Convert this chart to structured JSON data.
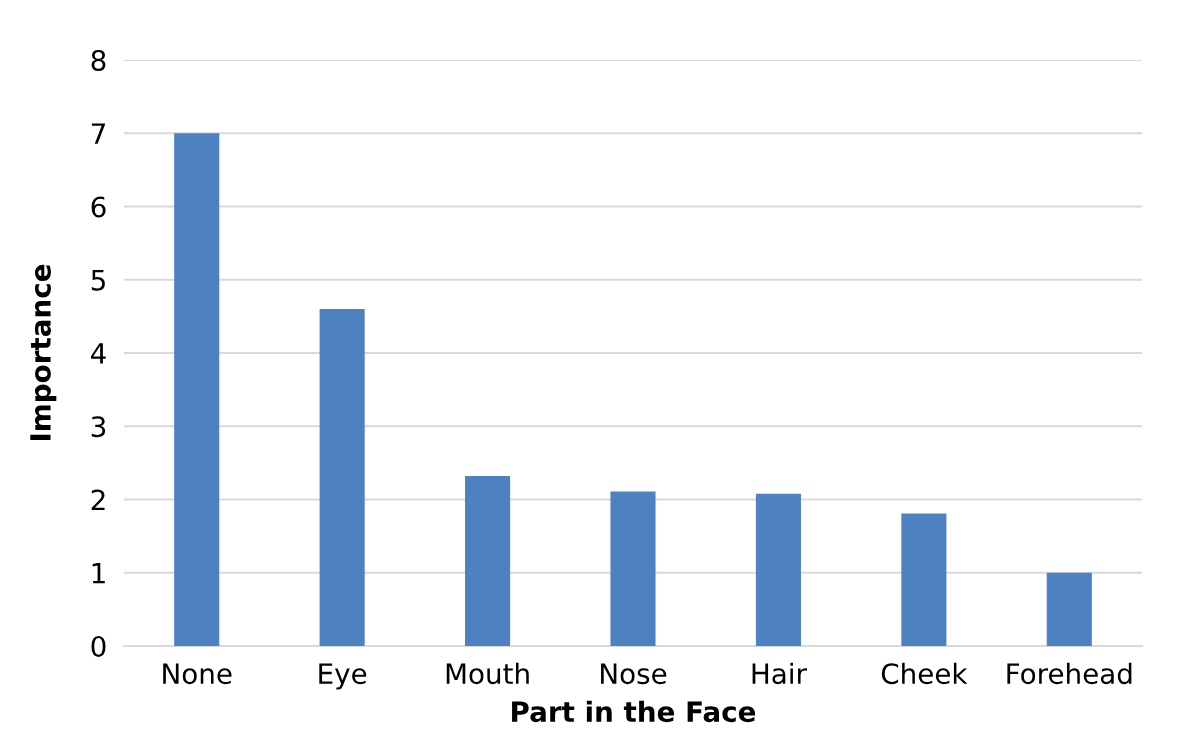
{
  "chart_data": {
    "type": "bar",
    "xlabel": "Part in the Face",
    "ylabel": "Importance",
    "categories": [
      "None",
      "Eye",
      "Mouth",
      "Nose",
      "Hair",
      "Cheek",
      "Forehead"
    ],
    "values": [
      7.0,
      4.6,
      2.32,
      2.11,
      2.08,
      1.81,
      1.0
    ],
    "color": "#4e81c1",
    "ylim": [
      0,
      8
    ],
    "yticks": [
      0,
      1,
      2,
      3,
      4,
      5,
      6,
      7,
      8
    ],
    "grid": "y",
    "legend": false
  }
}
